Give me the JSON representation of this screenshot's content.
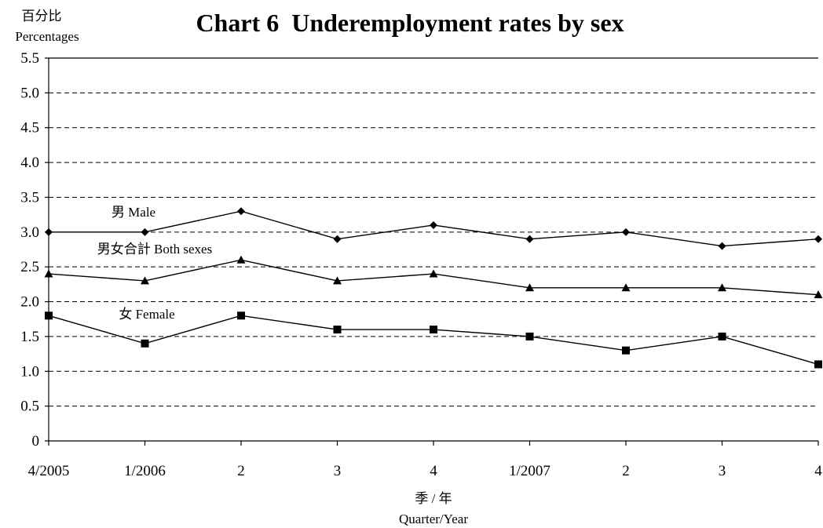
{
  "chart_data": {
    "type": "line",
    "title": "Chart 6  Underemployment rates by sex",
    "ylabel_cn": "百分比",
    "ylabel": "Percentages",
    "xlabel_cn": "季 / 年",
    "xlabel": "Quarter/Year",
    "categories": [
      "4/2005",
      "1/2006",
      "2",
      "3",
      "4",
      "1/2007",
      "2",
      "3",
      "4"
    ],
    "ylim": [
      0,
      5.5
    ],
    "yticks": [
      0,
      0.5,
      1.0,
      1.5,
      2.0,
      2.5,
      3.0,
      3.5,
      4.0,
      4.5,
      5.0,
      5.5
    ],
    "ytick_labels": [
      "0",
      "0.5",
      "1.0",
      "1.5",
      "2.0",
      "2.5",
      "3.0",
      "3.5",
      "4.0",
      "4.5",
      "5.0",
      "5.5"
    ],
    "grid": true,
    "series": [
      {
        "name": "男 Male",
        "marker": "diamond",
        "values": [
          3.0,
          3.0,
          3.3,
          2.9,
          3.1,
          2.9,
          3.0,
          2.8,
          2.9
        ]
      },
      {
        "name": "男女合計 Both sexes",
        "marker": "triangle",
        "values": [
          2.4,
          2.3,
          2.6,
          2.3,
          2.4,
          2.2,
          2.2,
          2.2,
          2.1
        ]
      },
      {
        "name": "女 Female",
        "marker": "square",
        "values": [
          1.8,
          1.4,
          1.8,
          1.6,
          1.6,
          1.5,
          1.3,
          1.5,
          1.1
        ]
      }
    ]
  }
}
